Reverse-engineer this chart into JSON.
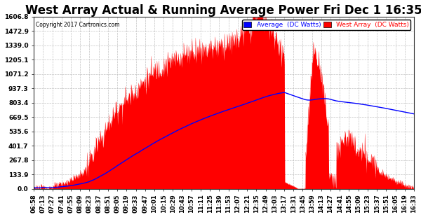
{
  "title": "West Array Actual & Running Average Power Fri Dec 1 16:35",
  "copyright": "Copyright 2017 Cartronics.com",
  "legend_avg": "Average  (DC Watts)",
  "legend_west": "West Array  (DC Watts)",
  "yticks": [
    0.0,
    133.9,
    267.8,
    401.7,
    535.6,
    669.5,
    803.4,
    937.3,
    1071.2,
    1205.1,
    1339.0,
    1472.9,
    1606.8
  ],
  "ymax": 1606.8,
  "ymin": 0.0,
  "bg_color": "#ffffff",
  "plot_bg_color": "#ffffff",
  "grid_color": "#bbbbbb",
  "bar_color": "#ff0000",
  "avg_line_color": "#0000ff",
  "title_fontsize": 12,
  "xtick_labels": [
    "06:58",
    "07:13",
    "07:27",
    "07:41",
    "07:55",
    "08:09",
    "08:23",
    "08:37",
    "08:51",
    "09:05",
    "09:19",
    "09:33",
    "09:47",
    "10:01",
    "10:15",
    "10:29",
    "10:43",
    "10:57",
    "11:11",
    "11:25",
    "11:39",
    "11:53",
    "12:07",
    "12:21",
    "12:35",
    "12:49",
    "13:03",
    "13:17",
    "13:31",
    "13:45",
    "13:59",
    "14:13",
    "14:27",
    "14:41",
    "14:55",
    "15:09",
    "15:23",
    "15:37",
    "15:51",
    "16:05",
    "16:19",
    "16:33"
  ],
  "num_points": 840
}
